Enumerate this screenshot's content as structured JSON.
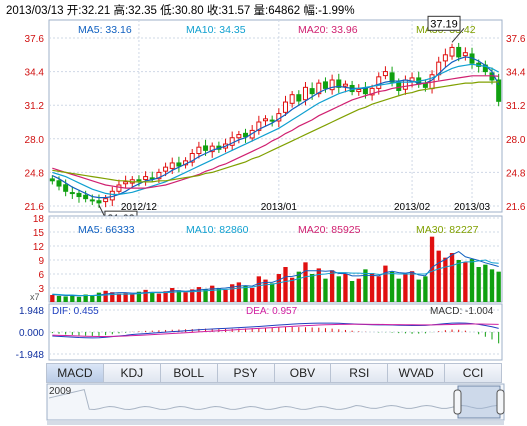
{
  "header": {
    "date": "2013/03/13",
    "open": "开:32.21",
    "high": "高:32.35",
    "low": "低:30.80",
    "close": "收:31.57",
    "volume": "量:64862",
    "change": "幅:-1.99%"
  },
  "colors": {
    "up": "#e01010",
    "down": "#10a010",
    "ma5": "#1060c0",
    "ma10": "#10a0d0",
    "ma20": "#d02070",
    "ma30": "#80a000",
    "grid": "#cfd8e6",
    "axis_text": "#d01010"
  },
  "main_legend": [
    {
      "label": "MA5: 33.16",
      "color": "#1060c0"
    },
    {
      "label": "MA10: 34.35",
      "color": "#10a0d0"
    },
    {
      "label": "MA20: 33.96",
      "color": "#d02070"
    },
    {
      "label": "MA30: 33.42",
      "color": "#80a000"
    }
  ],
  "vol_legend": [
    {
      "label": "MA5: 66333",
      "color": "#1060c0"
    },
    {
      "label": "MA10: 82860",
      "color": "#10a0d0"
    },
    {
      "label": "MA20: 85925",
      "color": "#d02070"
    },
    {
      "label": "MA30: 82227",
      "color": "#80a000"
    }
  ],
  "macd_legend": {
    "dif": "DIF: 0.455",
    "dea": "DEA: 0.957",
    "macd": "MACD: -1.004",
    "scale": "x7"
  },
  "annotations": {
    "high": "37.19",
    "low": "21.68"
  },
  "tabs": [
    "MACD",
    "KDJ",
    "BOLL",
    "PSY",
    "OBV",
    "RSI",
    "WVAD",
    "CCI"
  ],
  "active_tab": "MACD",
  "navigator": {
    "year": "2009"
  },
  "chart_data": [
    {
      "type": "candlestick",
      "y_ticks": [
        "37.6",
        "34.4",
        "31.2",
        "28.0",
        "24.8",
        "21.6"
      ],
      "ylim": [
        21.6,
        37.6
      ],
      "x_ticks": [
        "2012/12",
        "2013/01",
        "2013/02",
        "2013/03"
      ],
      "closes": [
        24.0,
        23.5,
        23.0,
        22.8,
        22.5,
        22.3,
        22.1,
        21.9,
        22.3,
        23.0,
        23.6,
        23.9,
        24.1,
        24.0,
        24.4,
        24.2,
        24.8,
        25.3,
        25.7,
        25.4,
        25.9,
        26.6,
        27.2,
        26.9,
        27.3,
        27.0,
        27.5,
        28.1,
        28.4,
        28.2,
        28.8,
        29.6,
        29.9,
        29.7,
        30.4,
        31.5,
        32.2,
        31.6,
        32.9,
        32.3,
        33.3,
        32.8,
        33.6,
        32.9,
        33.2,
        32.5,
        32.7,
        32.3,
        32.8,
        33.9,
        34.4,
        33.4,
        32.6,
        33.6,
        33.8,
        33.2,
        32.9,
        34.1,
        35.3,
        36.0,
        36.7,
        35.8,
        36.2,
        35.2,
        34.9,
        34.4,
        33.6,
        31.57
      ],
      "ma_series": [
        {
          "name": "MA5",
          "values": [
            24.5,
            24.2,
            23.8,
            23.4,
            23.1,
            22.8,
            22.5,
            22.4,
            22.4,
            22.5,
            22.7,
            23.0,
            23.4,
            23.7,
            24.0,
            24.1,
            24.3,
            24.6,
            25.0,
            25.3,
            25.6,
            25.9,
            26.3,
            26.6,
            26.9,
            27.1,
            27.3,
            27.6,
            27.9,
            28.1,
            28.5,
            28.9,
            29.2,
            29.5,
            29.9,
            30.3,
            30.8,
            31.2,
            31.6,
            32.0,
            32.4,
            32.7,
            32.9,
            33.0,
            32.9,
            32.8,
            32.8,
            32.8,
            33.0,
            33.2,
            33.4,
            33.5,
            33.5,
            33.6,
            33.5,
            33.3,
            33.3,
            33.6,
            34.2,
            34.8,
            35.3,
            35.6,
            35.8,
            35.7,
            35.4,
            35.0,
            34.4,
            33.16
          ]
        },
        {
          "name": "MA10",
          "values": [
            24.8,
            24.6,
            24.4,
            24.1,
            23.8,
            23.5,
            23.2,
            23.0,
            22.8,
            22.7,
            22.7,
            22.8,
            22.9,
            23.1,
            23.3,
            23.5,
            23.7,
            23.9,
            24.2,
            24.5,
            24.8,
            25.1,
            25.4,
            25.7,
            26.0,
            26.3,
            26.6,
            26.9,
            27.2,
            27.5,
            27.8,
            28.1,
            28.4,
            28.7,
            29.0,
            29.4,
            29.8,
            30.2,
            30.6,
            31.0,
            31.4,
            31.7,
            32.0,
            32.3,
            32.5,
            32.7,
            32.8,
            32.9,
            33.0,
            33.1,
            33.2,
            33.3,
            33.4,
            33.4,
            33.4,
            33.5,
            33.6,
            33.8,
            34.1,
            34.4,
            34.7,
            34.9,
            35.0,
            35.1,
            35.0,
            34.9,
            34.7,
            34.35
          ]
        },
        {
          "name": "MA20",
          "values": [
            25.2,
            25.0,
            24.8,
            24.6,
            24.4,
            24.2,
            24.0,
            23.8,
            23.6,
            23.5,
            23.4,
            23.3,
            23.3,
            23.3,
            23.3,
            23.4,
            23.5,
            23.6,
            23.8,
            24.0,
            24.2,
            24.4,
            24.6,
            24.9,
            25.1,
            25.4,
            25.6,
            25.9,
            26.2,
            26.5,
            26.8,
            27.1,
            27.4,
            27.8,
            28.1,
            28.5,
            28.8,
            29.2,
            29.5,
            29.8,
            30.2,
            30.5,
            30.8,
            31.1,
            31.4,
            31.7,
            31.9,
            32.1,
            32.3,
            32.5,
            32.6,
            32.8,
            32.9,
            33.0,
            33.1,
            33.2,
            33.3,
            33.4,
            33.5,
            33.6,
            33.7,
            33.8,
            33.9,
            34.0,
            34.0,
            34.0,
            34.0,
            33.96
          ]
        },
        {
          "name": "MA30",
          "values": [
            25.0,
            24.9,
            24.8,
            24.7,
            24.6,
            24.5,
            24.4,
            24.3,
            24.2,
            24.1,
            24.0,
            24.0,
            23.9,
            23.9,
            23.9,
            23.9,
            24.0,
            24.0,
            24.1,
            24.2,
            24.3,
            24.4,
            24.5,
            24.7,
            24.8,
            25.0,
            25.2,
            25.4,
            25.6,
            25.8,
            26.1,
            26.3,
            26.6,
            26.9,
            27.2,
            27.5,
            27.8,
            28.1,
            28.4,
            28.7,
            29.0,
            29.3,
            29.6,
            29.9,
            30.2,
            30.5,
            30.8,
            31.0,
            31.3,
            31.5,
            31.7,
            31.9,
            32.1,
            32.3,
            32.4,
            32.6,
            32.7,
            32.8,
            32.9,
            33.0,
            33.1,
            33.2,
            33.3,
            33.3,
            33.4,
            33.4,
            33.4,
            33.42
          ]
        }
      ]
    },
    {
      "type": "bar",
      "y_ticks": [
        "18",
        "15",
        "12",
        "9",
        "6",
        "3"
      ],
      "ylim": [
        0,
        18
      ],
      "unit": "x7",
      "values": [
        1.5,
        1.3,
        1.2,
        1.4,
        1.1,
        1.6,
        1.5,
        2.0,
        2.4,
        2.1,
        1.8,
        1.9,
        1.7,
        2.2,
        2.6,
        2.0,
        1.8,
        2.3,
        3.0,
        2.5,
        2.1,
        2.7,
        3.2,
        2.8,
        3.5,
        3.0,
        2.6,
        3.8,
        4.2,
        3.5,
        3.0,
        5.5,
        4.8,
        4.0,
        6.0,
        7.5,
        5.2,
        6.5,
        8.5,
        6.0,
        7.2,
        5.0,
        6.8,
        5.5,
        6.0,
        4.5,
        5.0,
        7.0,
        6.2,
        5.5,
        7.8,
        6.5,
        5.0,
        6.0,
        6.6,
        4.8,
        5.5,
        14.0,
        11.0,
        9.5,
        10.5,
        9.0,
        8.5,
        9.2,
        7.5,
        8.0,
        7.0,
        6.5
      ],
      "ma_series": [
        {
          "name": "MA5",
          "values": [
            1.6,
            1.5,
            1.4,
            1.4,
            1.3,
            1.4,
            1.4,
            1.5,
            1.7,
            1.9,
            2.0,
            2.0,
            1.9,
            1.9,
            2.0,
            2.1,
            2.1,
            2.1,
            2.4,
            2.4,
            2.3,
            2.4,
            2.6,
            2.7,
            2.8,
            2.9,
            3.0,
            3.2,
            3.4,
            3.5,
            3.4,
            4.0,
            4.2,
            4.2,
            4.7,
            5.4,
            5.5,
            5.8,
            6.7,
            6.7,
            6.7,
            6.6,
            6.7,
            6.1,
            6.1,
            5.6,
            5.6,
            5.7,
            5.7,
            5.6,
            6.3,
            6.6,
            6.3,
            6.2,
            6.4,
            5.8,
            5.6,
            7.4,
            8.4,
            9.1,
            10.1,
            10.8,
            9.7,
            9.3,
            8.9,
            8.4,
            8.0,
            7.6
          ]
        },
        {
          "name": "MA10",
          "values": [
            1.7,
            1.6,
            1.5,
            1.5,
            1.4,
            1.4,
            1.4,
            1.4,
            1.5,
            1.6,
            1.7,
            1.7,
            1.7,
            1.8,
            1.9,
            2.0,
            2.0,
            2.0,
            2.1,
            2.2,
            2.2,
            2.2,
            2.3,
            2.4,
            2.5,
            2.6,
            2.7,
            2.8,
            3.0,
            3.1,
            3.2,
            3.5,
            3.7,
            3.8,
            4.1,
            4.4,
            4.6,
            5.0,
            5.4,
            5.6,
            5.9,
            6.0,
            6.2,
            6.3,
            6.3,
            6.2,
            6.2,
            6.1,
            6.1,
            5.9,
            6.0,
            6.1,
            6.0,
            6.0,
            6.0,
            6.0,
            6.0,
            6.6,
            7.1,
            7.5,
            7.8,
            8.3,
            8.6,
            8.6,
            8.8,
            9.0,
            8.4,
            8.3
          ]
        }
      ]
    },
    {
      "type": "bar",
      "y_ticks": [
        "1.948",
        "0.000",
        "-1.948"
      ],
      "ylim": [
        -1.948,
        1.948
      ],
      "macd_values": [
        -0.1,
        -0.15,
        -0.22,
        -0.26,
        -0.3,
        -0.33,
        -0.36,
        -0.34,
        -0.28,
        -0.2,
        -0.12,
        -0.06,
        0.02,
        0.06,
        0.1,
        0.12,
        0.15,
        0.18,
        0.2,
        0.22,
        0.24,
        0.26,
        0.28,
        0.3,
        0.28,
        0.26,
        0.27,
        0.28,
        0.3,
        0.32,
        0.34,
        0.36,
        0.38,
        0.4,
        0.42,
        0.44,
        0.45,
        0.43,
        0.42,
        0.4,
        0.38,
        0.34,
        0.3,
        0.24,
        0.18,
        0.12,
        0.06,
        0.02,
        0.0,
        -0.04,
        -0.02,
        -0.06,
        -0.1,
        -0.12,
        -0.16,
        -0.14,
        -0.12,
        -0.02,
        0.08,
        0.16,
        0.22,
        0.2,
        0.12,
        0.0,
        -0.2,
        -0.42,
        -0.66,
        -1.004
      ],
      "dif_values": [
        -0.5,
        -0.55,
        -0.6,
        -0.65,
        -0.7,
        -0.72,
        -0.74,
        -0.72,
        -0.66,
        -0.58,
        -0.5,
        -0.42,
        -0.32,
        -0.26,
        -0.2,
        -0.14,
        -0.08,
        -0.02,
        0.04,
        0.1,
        0.16,
        0.22,
        0.28,
        0.34,
        0.38,
        0.42,
        0.46,
        0.5,
        0.55,
        0.6,
        0.65,
        0.7,
        0.76,
        0.82,
        0.88,
        0.94,
        1.0,
        1.04,
        1.08,
        1.1,
        1.12,
        1.13,
        1.12,
        1.1,
        1.06,
        1.02,
        0.98,
        0.95,
        0.92,
        0.9,
        0.9,
        0.88,
        0.86,
        0.84,
        0.82,
        0.82,
        0.84,
        0.9,
        0.98,
        1.06,
        1.12,
        1.14,
        1.12,
        1.06,
        0.96,
        0.82,
        0.66,
        0.455
      ],
      "dea_values": [
        -0.4,
        -0.42,
        -0.45,
        -0.48,
        -0.51,
        -0.54,
        -0.56,
        -0.57,
        -0.57,
        -0.55,
        -0.53,
        -0.5,
        -0.46,
        -0.42,
        -0.38,
        -0.33,
        -0.29,
        -0.24,
        -0.19,
        -0.14,
        -0.09,
        -0.04,
        0.01,
        0.06,
        0.11,
        0.16,
        0.21,
        0.26,
        0.31,
        0.36,
        0.41,
        0.46,
        0.51,
        0.56,
        0.61,
        0.66,
        0.71,
        0.76,
        0.8,
        0.84,
        0.88,
        0.91,
        0.94,
        0.96,
        0.97,
        0.98,
        0.98,
        0.98,
        0.97,
        0.96,
        0.95,
        0.94,
        0.93,
        0.92,
        0.91,
        0.9,
        0.9,
        0.9,
        0.91,
        0.93,
        0.95,
        0.98,
        1.0,
        1.01,
        1.01,
        1.0,
        0.98,
        0.957
      ]
    }
  ]
}
